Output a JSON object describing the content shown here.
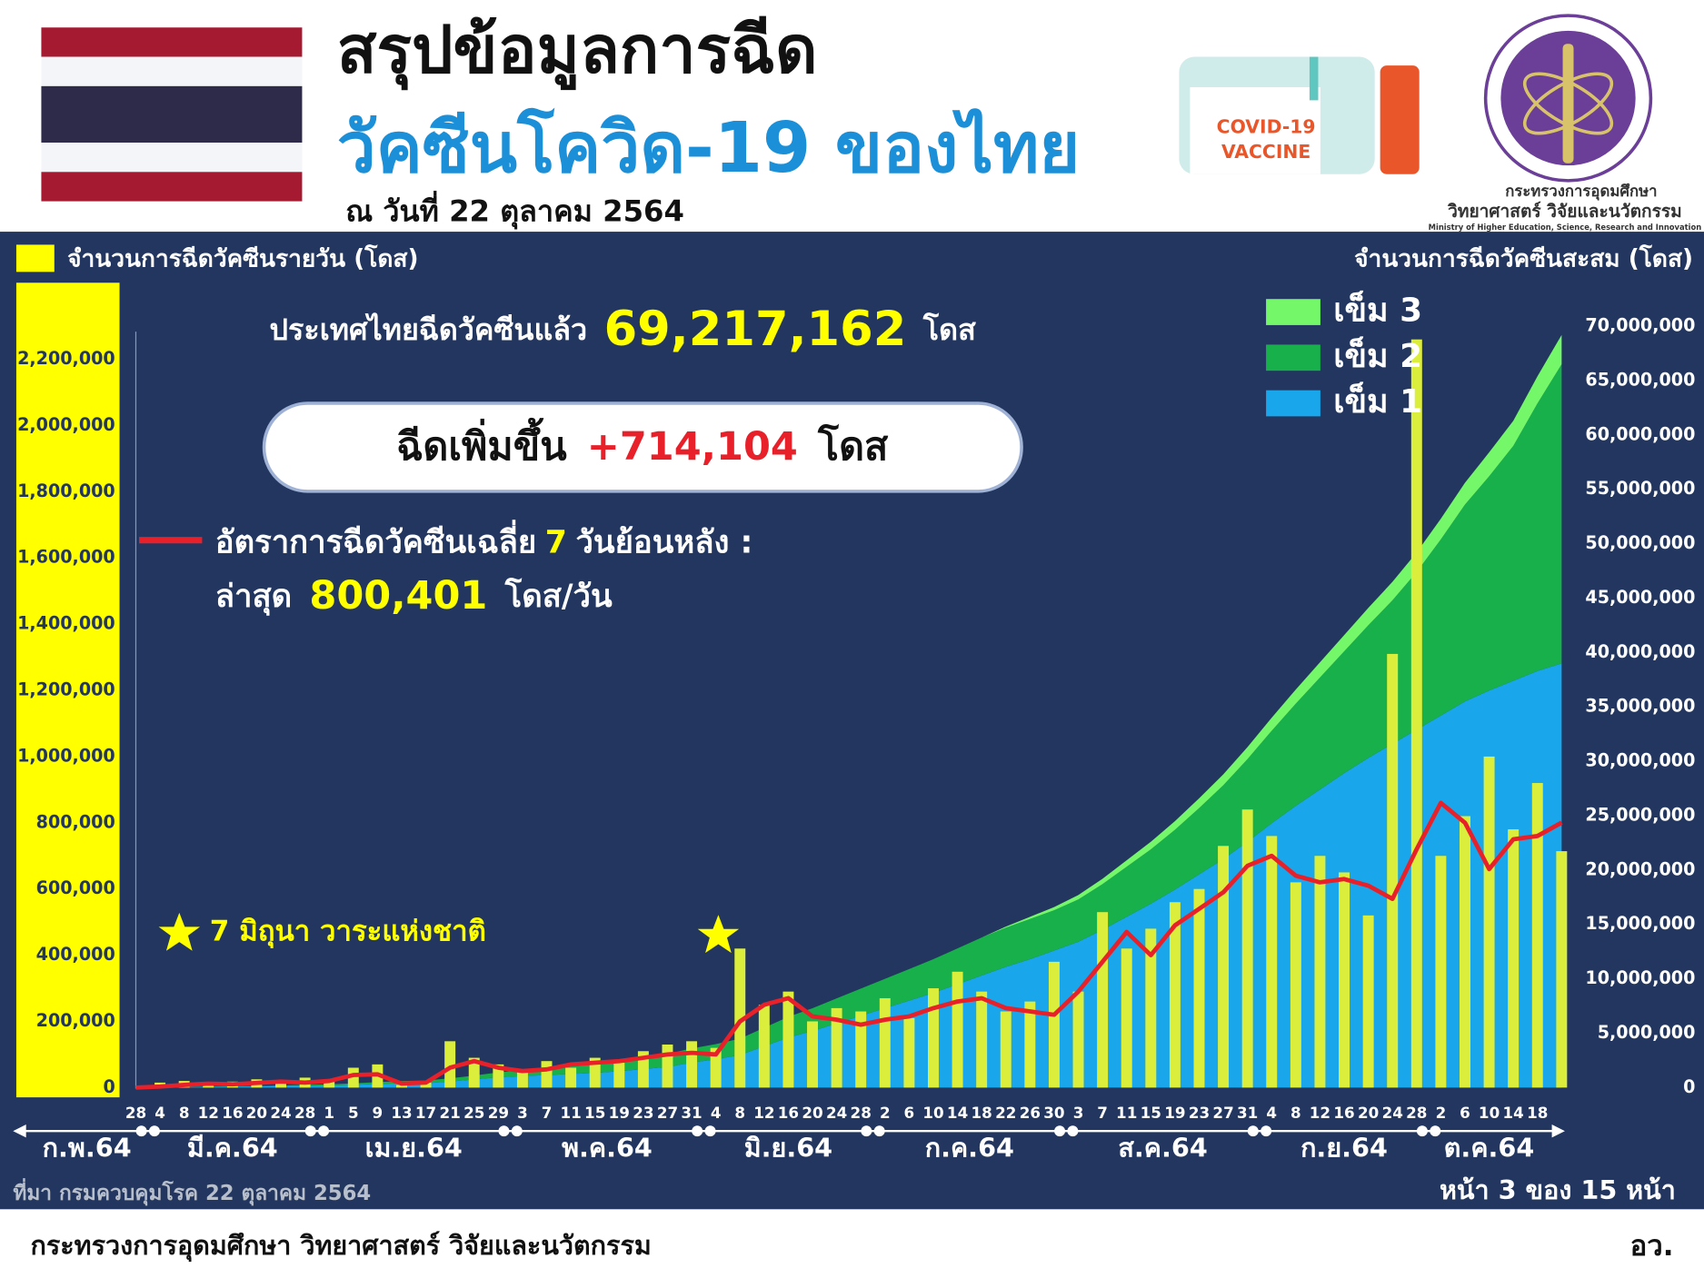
{
  "header": {
    "title": "สรุปข้อมูลการฉีด",
    "subtitle": "วัคซีนโควิด-19 ของไทย",
    "date": "ณ วันที่ 22 ตุลาคม 2564",
    "vaccine_label_1": "COVID-19",
    "vaccine_label_2": "VACCINE",
    "ministry_th_1": "กระทรวงการอุดมศึกษา",
    "ministry_th_2": "วิทยาศาสตร์ วิจัยและนวัตกรรม",
    "ministry_en": "Ministry of Higher Education, Science, Research and Innovation"
  },
  "summary": {
    "total_label": "ประเทศไทยฉีดวัคซีนแล้ว",
    "total_value": "69,217,162",
    "total_unit": "โดส",
    "increase_label": "ฉีดเพิ่มขึ้น",
    "increase_value": "+714,104",
    "increase_unit": "โดส",
    "latest_label": "ล่าสุด",
    "latest_value": "800,401",
    "latest_unit": "โดส/วัน"
  },
  "chart_data": {
    "type": "combo",
    "y_title": "จำนวนการฉีดวัคซีนรายวัน (โดส)",
    "y2_title": "จำนวนการฉีดวัคซีนสะสม (โดส)",
    "annotation": "7 มิถุนา วาระแห่งชาติ",
    "categories": [
      "28",
      "4",
      "8",
      "12",
      "16",
      "20",
      "24",
      "28",
      "1",
      "5",
      "9",
      "13",
      "17",
      "21",
      "25",
      "29",
      "3",
      "7",
      "11",
      "15",
      "19",
      "23",
      "27",
      "31",
      "4",
      "8",
      "12",
      "16",
      "20",
      "24",
      "28",
      "2",
      "6",
      "10",
      "14",
      "18",
      "22",
      "26",
      "30",
      "3",
      "7",
      "11",
      "15",
      "19",
      "23",
      "27",
      "31",
      "4",
      "8",
      "12",
      "16",
      "20",
      "24",
      "28",
      "2",
      "6",
      "10",
      "14",
      "18",
      null
    ],
    "x_groups": [
      "ก.พ.64",
      "มี.ค.64",
      "เม.ย.64",
      "พ.ค.64",
      "มิ.ย.64",
      "ก.ค.64",
      "ส.ค.64",
      "ก.ย.64",
      "ต.ค.64"
    ],
    "ylim": [
      0,
      2300000
    ],
    "yticks": [
      0,
      {
        "value": 200000,
        "label": "200,000"
      },
      {
        "value": 400000,
        "label": "400,000"
      },
      {
        "value": 600000,
        "label": "600,000"
      },
      {
        "value": 800000,
        "label": "800,000"
      },
      {
        "value": 1000000,
        "label": "1,000,000"
      },
      {
        "value": 1200000,
        "label": "1,200,000"
      },
      {
        "value": 1400000,
        "label": "1,400,000"
      },
      {
        "value": 1600000,
        "label": "1,600,000"
      },
      {
        "value": 1800000,
        "label": "1,800,000"
      },
      {
        "value": 2000000,
        "label": "2,000,000"
      },
      {
        "value": 2200000,
        "label": "2,200,000"
      }
    ],
    "y2lim": [
      0,
      70000000
    ],
    "y2ticks": [
      0,
      {
        "value": 5000000,
        "label": "5,000,000"
      },
      {
        "value": 10000000,
        "label": "10,000,000"
      },
      {
        "value": 15000000,
        "label": "15,000,000"
      },
      {
        "value": 20000000,
        "label": "20,000,000"
      },
      {
        "value": 25000000,
        "label": "25,000,000"
      },
      {
        "value": 30000000,
        "label": "30,000,000"
      },
      {
        "value": 35000000,
        "label": "35,000,000"
      },
      {
        "value": 40000000,
        "label": "40,000,000"
      },
      {
        "value": 45000000,
        "label": "45,000,000"
      },
      {
        "value": 50000000,
        "label": "50,000,000"
      },
      {
        "value": 55000000,
        "label": "55,000,000"
      },
      {
        "value": 60000000,
        "label": "60,000,000"
      },
      {
        "value": 65000000,
        "label": "65,000,000"
      },
      {
        "value": 70000000,
        "label": "70,000,000"
      }
    ],
    "series": [
      {
        "name": "เข็ม 1",
        "type": "area",
        "axis": "y2",
        "color": "#1aa6ea",
        "values": [
          0,
          30000,
          50000,
          70000,
          90000,
          110000,
          140000,
          170000,
          200000,
          250000,
          330000,
          380000,
          400000,
          550000,
          750000,
          950000,
          1050000,
          1150000,
          1250000,
          1350000,
          1500000,
          1700000,
          1900000,
          2300000,
          2600000,
          3000000,
          3800000,
          4600000,
          5200000,
          5900000,
          6600000,
          7300000,
          8000000,
          8700000,
          9500000,
          10300000,
          11100000,
          11800000,
          12600000,
          13400000,
          14500000,
          15700000,
          16900000,
          18200000,
          19600000,
          21000000,
          22600000,
          24300000,
          25900000,
          27400000,
          28900000,
          30300000,
          31600000,
          32900000,
          34200000,
          35500000,
          36500000,
          37400000,
          38300000,
          39000000
        ]
      },
      {
        "name": "เข็ม 2",
        "type": "area",
        "axis": "y2",
        "color": "#17b04b",
        "values": [
          0,
          0,
          10000,
          20000,
          30000,
          40000,
          60000,
          80000,
          100000,
          130000,
          170000,
          220000,
          250000,
          300000,
          350000,
          450000,
          550000,
          650000,
          750000,
          850000,
          1000000,
          1100000,
          1200000,
          1300000,
          1400000,
          1500000,
          1700000,
          1900000,
          2100000,
          2300000,
          2500000,
          2700000,
          2900000,
          3100000,
          3300000,
          3500000,
          3600000,
          3700000,
          3700000,
          3900000,
          4200000,
          4600000,
          5000000,
          5500000,
          6100000,
          6800000,
          7600000,
          8500000,
          9400000,
          10300000,
          11200000,
          12200000,
          13200000,
          14500000,
          16200000,
          18100000,
          19700000,
          21600000,
          24600000,
          27500000
        ]
      },
      {
        "name": "เข็ม 3",
        "type": "area",
        "axis": "y2",
        "color": "#74f86a",
        "values": [
          0,
          0,
          0,
          0,
          0,
          0,
          0,
          0,
          0,
          0,
          0,
          0,
          0,
          0,
          0,
          0,
          0,
          0,
          0,
          0,
          0,
          0,
          0,
          0,
          0,
          0,
          0,
          0,
          0,
          0,
          0,
          0,
          0,
          0,
          0,
          0,
          100000,
          200000,
          300000,
          400000,
          500000,
          600000,
          700000,
          800000,
          900000,
          1000000,
          1100000,
          1200000,
          1300000,
          1400000,
          1500000,
          1600000,
          1700000,
          1800000,
          1900000,
          2000000,
          2200000,
          2300000,
          2500000,
          2700000
        ]
      },
      {
        "name": "จำนวนการฉีดวัคซีนรายวัน (โดส)",
        "type": "bar",
        "color": "#dcee3c",
        "values": [
          0,
          15000,
          20000,
          12000,
          18000,
          25000,
          14000,
          30000,
          22000,
          60000,
          70000,
          8000,
          15000,
          140000,
          90000,
          70000,
          50000,
          80000,
          60000,
          90000,
          75000,
          110000,
          130000,
          140000,
          120000,
          420000,
          250000,
          290000,
          200000,
          240000,
          230000,
          270000,
          210000,
          300000,
          350000,
          290000,
          230000,
          260000,
          380000,
          290000,
          530000,
          420000,
          480000,
          560000,
          600000,
          730000,
          840000,
          760000,
          620000,
          700000,
          650000,
          520000,
          1310000,
          2260000,
          700000,
          820000,
          1000000,
          780000,
          920000,
          714104
        ]
      },
      {
        "name_parts": [
          "อัตราการฉีดวัคซีนเฉลี่ย",
          "7",
          "วันย้อนหลัง :"
        ],
        "type": "line",
        "color": "#e8202a",
        "values": [
          0,
          3000,
          8000,
          12000,
          10000,
          14000,
          18000,
          15000,
          20000,
          38000,
          40000,
          12000,
          15000,
          60000,
          80000,
          60000,
          50000,
          55000,
          70000,
          75000,
          80000,
          90000,
          100000,
          105000,
          100000,
          200000,
          250000,
          270000,
          215000,
          205000,
          190000,
          205000,
          215000,
          240000,
          260000,
          270000,
          240000,
          230000,
          220000,
          290000,
          380000,
          470000,
          400000,
          490000,
          540000,
          590000,
          670000,
          700000,
          640000,
          620000,
          630000,
          610000,
          570000,
          720000,
          860000,
          800000,
          660000,
          750000,
          760000,
          800401
        ]
      }
    ]
  },
  "footer": {
    "source": "ที่มา กรมควบคุมโรค 22 ตุลาคม 2564",
    "page": "หน้า 3 ของ 15 หน้า",
    "ministry": "กระทรวงการอุดมศึกษา วิทยาศาสตร์ วิจัยและนวัตกรรม",
    "abbr": "อว."
  }
}
